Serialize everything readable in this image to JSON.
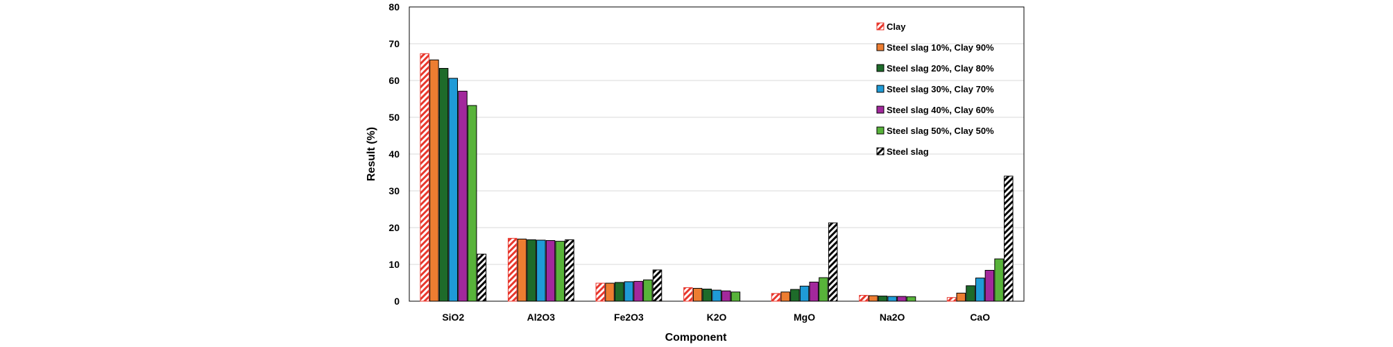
{
  "chart_data": {
    "type": "bar",
    "title": "",
    "xlabel": "Component",
    "ylabel": "Result (%)",
    "ylim": [
      0,
      80
    ],
    "yticks": [
      0,
      10,
      20,
      30,
      40,
      50,
      60,
      70,
      80
    ],
    "grid": true,
    "legend_position": "top-right",
    "categories": [
      "SiO2",
      "Al2O3",
      "Fe2O3",
      "K2O",
      "MgO",
      "Na2O",
      "CaO"
    ],
    "series": [
      {
        "name": "Clay",
        "color": "#e8372d",
        "pattern": "hatch-red",
        "values": [
          67.3,
          17.1,
          4.9,
          3.7,
          2.1,
          1.6,
          1.0
        ]
      },
      {
        "name": "Steel slag 10%, Clay 90%",
        "color": "#ed7d31",
        "pattern": "solid",
        "values": [
          65.6,
          16.9,
          4.9,
          3.5,
          2.5,
          1.5,
          2.2
        ]
      },
      {
        "name": "Steel slag 20%, Clay 80%",
        "color": "#1e6b2a",
        "pattern": "solid",
        "values": [
          63.3,
          16.7,
          5.1,
          3.3,
          3.2,
          1.4,
          4.2
        ]
      },
      {
        "name": "Steel slag 30%, Clay 70%",
        "color": "#1f9bd7",
        "pattern": "solid",
        "values": [
          60.6,
          16.6,
          5.3,
          3.0,
          4.1,
          1.3,
          6.3
        ]
      },
      {
        "name": "Steel slag 40%, Clay 60%",
        "color": "#a2289c",
        "pattern": "solid",
        "values": [
          57.1,
          16.5,
          5.4,
          2.8,
          5.2,
          1.3,
          8.4
        ]
      },
      {
        "name": "Steel slag 50%, Clay 50%",
        "color": "#58b33a",
        "pattern": "solid",
        "values": [
          53.2,
          16.3,
          5.8,
          2.5,
          6.4,
          1.2,
          11.5
        ]
      },
      {
        "name": "Steel slag",
        "color": "#000000",
        "pattern": "hatch-black",
        "values": [
          12.8,
          16.7,
          8.5,
          null,
          21.3,
          null,
          34.0
        ]
      }
    ]
  }
}
